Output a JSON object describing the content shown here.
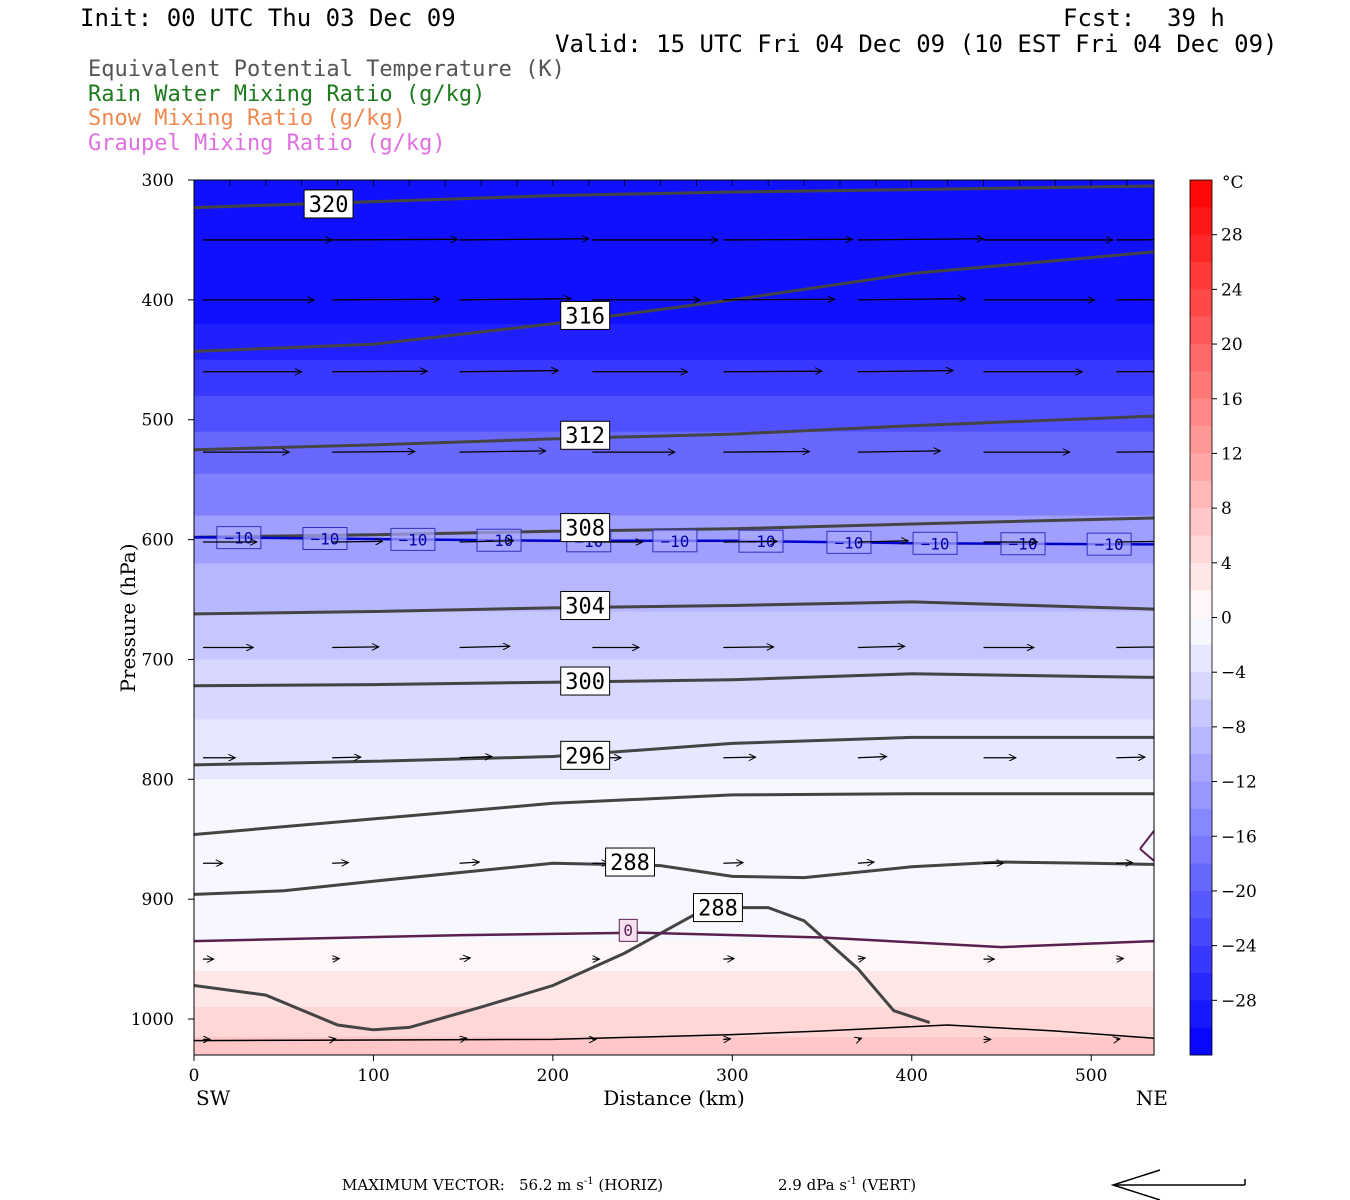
{
  "header": {
    "init": "Init: 00 UTC Thu 03 Dec 09",
    "fcst_label": "Fcst:",
    "fcst_value": "39 h",
    "valid": "Valid: 15 UTC Fri 04 Dec 09 (10 EST Fri 04 Dec 09)"
  },
  "legend": [
    {
      "label": "Equivalent Potential Temperature (K)",
      "color": "#555555"
    },
    {
      "label": "Rain Water Mixing Ratio (g/kg)",
      "color": "#1e7a1e"
    },
    {
      "label": "Snow Mixing Ratio (g/kg)",
      "color": "#f08a50"
    },
    {
      "label": "Graupel Mixing Ratio (g/kg)",
      "color": "#e070e0"
    }
  ],
  "footer": {
    "max_vector_label": "MAXIMUM VECTOR:",
    "horiz_value": "56.2 m s",
    "horiz_exp": "-1",
    "horiz_unit": "(HORIZ)",
    "vert_value": "2.9 dPa s",
    "vert_exp": "-1",
    "vert_unit": "(VERT)"
  },
  "chart_data": {
    "type": "cross-section",
    "xlabel": "Distance (km)",
    "ylabel": "Pressure (hPa)",
    "xlim": [
      0,
      535
    ],
    "ylim": [
      1030,
      300
    ],
    "x_ticks": [
      0,
      100,
      200,
      300,
      400,
      500
    ],
    "y_ticks": [
      300,
      400,
      500,
      600,
      700,
      800,
      900,
      1000
    ],
    "left_end_label": "SW",
    "right_end_label": "NE",
    "colorbar": {
      "unit": "°C",
      "tick_labels": [
        "28",
        "24",
        "20",
        "16",
        "12",
        "8",
        "4",
        "0",
        "−4",
        "−8",
        "−12",
        "−16",
        "−20",
        "−24",
        "−28"
      ],
      "tick_values": [
        28,
        24,
        20,
        16,
        12,
        8,
        4,
        0,
        -4,
        -8,
        -12,
        -16,
        -20,
        -24,
        -28
      ],
      "range": [
        -32,
        32
      ],
      "warm_color": "#ff0000",
      "cold_color": "#0000ff"
    },
    "temperature_bands": [
      {
        "p_top": 300,
        "p_bot": 420,
        "temp": -30
      },
      {
        "p_top": 420,
        "p_bot": 450,
        "temp": -28
      },
      {
        "p_top": 450,
        "p_bot": 480,
        "temp": -25
      },
      {
        "p_top": 480,
        "p_bot": 510,
        "temp": -22
      },
      {
        "p_top": 510,
        "p_bot": 545,
        "temp": -19
      },
      {
        "p_top": 545,
        "p_bot": 580,
        "temp": -16
      },
      {
        "p_top": 580,
        "p_bot": 620,
        "temp": -12
      },
      {
        "p_top": 620,
        "p_bot": 660,
        "temp": -9
      },
      {
        "p_top": 660,
        "p_bot": 700,
        "temp": -7
      },
      {
        "p_top": 700,
        "p_bot": 750,
        "temp": -5
      },
      {
        "p_top": 750,
        "p_bot": 800,
        "temp": -3
      },
      {
        "p_top": 800,
        "p_bot": 935,
        "temp": -1
      },
      {
        "p_top": 935,
        "p_bot": 960,
        "temp": 1
      },
      {
        "p_top": 960,
        "p_bot": 990,
        "temp": 3
      },
      {
        "p_top": 990,
        "p_bot": 1015,
        "temp": 5
      },
      {
        "p_top": 1015,
        "p_bot": 1030,
        "temp": 7
      }
    ],
    "theta_e_contours": [
      {
        "label": "320",
        "label_x": 75,
        "label_p": 320,
        "points": [
          [
            0,
            323
          ],
          [
            100,
            318
          ],
          [
            200,
            313
          ],
          [
            300,
            310
          ],
          [
            400,
            308
          ],
          [
            535,
            305
          ]
        ]
      },
      {
        "label": "316",
        "label_x": 218,
        "label_p": 413,
        "points": [
          [
            0,
            443
          ],
          [
            100,
            437
          ],
          [
            200,
            420
          ],
          [
            300,
            400
          ],
          [
            400,
            378
          ],
          [
            535,
            360
          ]
        ]
      },
      {
        "label": "312",
        "label_x": 218,
        "label_p": 513,
        "points": [
          [
            0,
            525
          ],
          [
            100,
            521
          ],
          [
            200,
            516
          ],
          [
            300,
            512
          ],
          [
            400,
            505
          ],
          [
            535,
            497
          ]
        ]
      },
      {
        "label": "308",
        "label_x": 218,
        "label_p": 590,
        "points": [
          [
            0,
            598
          ],
          [
            100,
            596
          ],
          [
            200,
            593
          ],
          [
            300,
            591
          ],
          [
            400,
            587
          ],
          [
            535,
            582
          ]
        ]
      },
      {
        "label": "304",
        "label_x": 218,
        "label_p": 655,
        "points": [
          [
            0,
            662
          ],
          [
            100,
            660
          ],
          [
            200,
            657
          ],
          [
            300,
            655
          ],
          [
            400,
            652
          ],
          [
            535,
            658
          ]
        ]
      },
      {
        "label": "300",
        "label_x": 218,
        "label_p": 718,
        "points": [
          [
            0,
            722
          ],
          [
            100,
            721
          ],
          [
            200,
            719
          ],
          [
            300,
            717
          ],
          [
            400,
            712
          ],
          [
            535,
            715
          ]
        ]
      },
      {
        "label": "296",
        "label_x": 218,
        "label_p": 780,
        "points": [
          [
            0,
            788
          ],
          [
            100,
            785
          ],
          [
            200,
            781
          ],
          [
            300,
            770
          ],
          [
            400,
            765
          ],
          [
            535,
            765
          ]
        ]
      },
      {
        "label": "",
        "label_x": null,
        "label_p": null,
        "points": [
          [
            0,
            846
          ],
          [
            100,
            833
          ],
          [
            200,
            820
          ],
          [
            300,
            813
          ],
          [
            400,
            812
          ],
          [
            535,
            812
          ]
        ]
      },
      {
        "label": "288",
        "label_x": 243,
        "label_p": 869,
        "points": [
          [
            0,
            896
          ],
          [
            50,
            893
          ],
          [
            100,
            885
          ],
          [
            200,
            870
          ],
          [
            260,
            872
          ],
          [
            300,
            881
          ],
          [
            340,
            882
          ],
          [
            400,
            873
          ],
          [
            450,
            869
          ],
          [
            500,
            870
          ],
          [
            535,
            871
          ]
        ]
      },
      {
        "label": "288",
        "label_x": 292,
        "label_p": 907,
        "points": [
          [
            0,
            972
          ],
          [
            40,
            980
          ],
          [
            80,
            1005
          ],
          [
            100,
            1009
          ],
          [
            120,
            1007
          ],
          [
            160,
            990
          ],
          [
            200,
            972
          ],
          [
            240,
            945
          ],
          [
            280,
            912
          ],
          [
            300,
            907
          ],
          [
            320,
            907
          ],
          [
            340,
            918
          ],
          [
            370,
            958
          ],
          [
            390,
            993
          ],
          [
            410,
            1003
          ]
        ]
      }
    ],
    "isotherm_minus10": {
      "label": "−10",
      "color": "#0000cc",
      "label_x": [
        25,
        73,
        122,
        170,
        220,
        268,
        316,
        365,
        413,
        462,
        510
      ],
      "points": [
        [
          0,
          598
        ],
        [
          200,
          601
        ],
        [
          300,
          601
        ],
        [
          400,
          603
        ],
        [
          535,
          604
        ]
      ]
    },
    "isotherm_zero": {
      "label": "0",
      "color": "#5a2050",
      "label_x": 242,
      "label_p": 926,
      "points": [
        [
          0,
          935
        ],
        [
          150,
          930
        ],
        [
          250,
          928
        ],
        [
          350,
          932
        ],
        [
          450,
          940
        ],
        [
          535,
          935
        ]
      ]
    },
    "surface_line": {
      "points": [
        [
          0,
          1018
        ],
        [
          200,
          1017
        ],
        [
          300,
          1013
        ],
        [
          350,
          1010
        ],
        [
          420,
          1005
        ],
        [
          480,
          1010
        ],
        [
          535,
          1016
        ]
      ]
    },
    "wind_levels": [
      {
        "p": 350,
        "len_km": 72
      },
      {
        "p": 400,
        "len_km": 62
      },
      {
        "p": 460,
        "len_km": 55
      },
      {
        "p": 527,
        "len_km": 48
      },
      {
        "p": 602,
        "len_km": 30
      },
      {
        "p": 690,
        "len_km": 28
      },
      {
        "p": 782,
        "len_km": 18
      },
      {
        "p": 870,
        "len_km": 11
      },
      {
        "p": 950,
        "len_km": 6
      },
      {
        "p": 1017,
        "len_km": 4
      }
    ],
    "wind_x_positions": [
      5,
      75,
      148,
      220,
      295,
      368,
      440,
      512
    ]
  }
}
